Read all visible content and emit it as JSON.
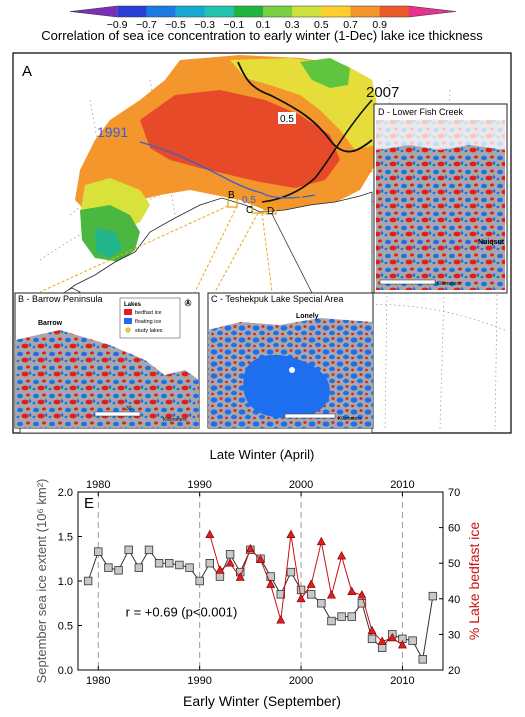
{
  "colorbar": {
    "ticks": [
      "−0.9",
      "−0.7",
      "−0.5",
      "−0.3",
      "−0.1",
      "0.1",
      "0.3",
      "0.5",
      "0.7",
      "0.9"
    ],
    "colors": [
      "#7a2fb4",
      "#2a3fd6",
      "#1b7be3",
      "#16a9d6",
      "#22c4b0",
      "#22b441",
      "#78d042",
      "#cfe23b",
      "#ffcf2e",
      "#f3962b",
      "#ea5a2a",
      "#e8318e"
    ],
    "title": "Correlation of sea ice concentration to early winter (1-Dec) lake ice thickness"
  },
  "map": {
    "panel_letter": "A",
    "label_1991": "1991",
    "label_2007": "2007",
    "contour_05a": "0.5",
    "contour_05b": "0.5",
    "site_b": "B",
    "site_c": "C",
    "site_d": "D",
    "top_caption": "Late Winter (April)"
  },
  "insets": {
    "b_title": "B - Barrow Peninsula",
    "b_town": "Barrow",
    "c_title": "C - Teshekpuk Lake Special Area",
    "c_town": "Lonely",
    "d_title": "D - Lower Fish Creek",
    "d_town": "Nuiqsut",
    "scale_b": "30",
    "scale_unit": "Kilometers",
    "legend_title": "Lakes",
    "legend_items": [
      {
        "label": "bedfast ice",
        "color": "#e01e1e"
      },
      {
        "label": "floating ice",
        "color": "#1e6ff0"
      },
      {
        "label": "study lakes",
        "color": "#ffd400"
      }
    ]
  },
  "colors": {
    "bedfast": "#e01e1e",
    "floating": "#1e6ff0",
    "land": "#a8a8a8",
    "sea_ice": "#4a4a4a",
    "lake_pct": "#cc1111"
  },
  "chart_data": {
    "type": "line",
    "panel_letter": "E",
    "xlabel": "Early Winter (September)",
    "ylabel_left": "September sea ice extent (10⁶ km²)",
    "ylabel_right": "% Lake bedfast ice",
    "xlim": [
      1978,
      2014
    ],
    "ylim_left": [
      0,
      2.0
    ],
    "ylim_right": [
      20,
      70
    ],
    "x_ticks_bottom": [
      1980,
      1990,
      2000,
      2010
    ],
    "x_ticks_top": [
      1980,
      1990,
      2000,
      2010
    ],
    "y_ticks_left": [
      "0.0",
      "0.5",
      "1.0",
      "1.5",
      "2.0"
    ],
    "y_ticks_right": [
      "20",
      "30",
      "40",
      "50",
      "60",
      "70"
    ],
    "annotation": "r = +0.69 (p<0.001)",
    "series": [
      {
        "axis": "left",
        "marker": "square",
        "color": "#333333",
        "x": [
          1979,
          1980,
          1981,
          1982,
          1983,
          1984,
          1985,
          1986,
          1987,
          1988,
          1989,
          1990,
          1991,
          1992,
          1993,
          1994,
          1995,
          1996,
          1997,
          1998,
          1999,
          2000,
          2001,
          2002,
          2003,
          2004,
          2005,
          2006,
          2007,
          2008,
          2009,
          2010,
          2011,
          2012,
          2013
        ],
        "values": [
          1.0,
          1.33,
          1.15,
          1.12,
          1.35,
          1.15,
          1.35,
          1.2,
          1.2,
          1.18,
          1.15,
          1.0,
          1.2,
          1.05,
          1.3,
          1.1,
          1.35,
          1.25,
          1.05,
          0.85,
          1.1,
          0.9,
          0.85,
          0.75,
          0.55,
          0.6,
          0.6,
          0.75,
          0.35,
          0.25,
          0.4,
          0.35,
          0.33,
          0.12,
          0.83
        ]
      },
      {
        "axis": "right",
        "marker": "triangle",
        "color": "#cc1111",
        "x": [
          1991,
          1992,
          1993,
          1994,
          1995,
          1996,
          1997,
          1998,
          1999,
          2000,
          2001,
          2002,
          2003,
          2004,
          2005,
          2006,
          2007,
          2008,
          2009,
          2010
        ],
        "values": [
          58,
          48,
          50,
          46,
          54,
          51,
          44,
          34,
          58,
          40,
          44,
          56,
          41,
          52,
          42,
          41,
          31,
          28,
          29,
          27
        ]
      }
    ]
  }
}
